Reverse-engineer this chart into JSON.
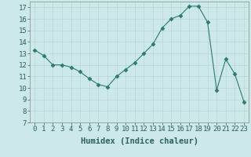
{
  "x": [
    0,
    1,
    2,
    3,
    4,
    5,
    6,
    7,
    8,
    9,
    10,
    11,
    12,
    13,
    14,
    15,
    16,
    17,
    18,
    19,
    20,
    21,
    22,
    23
  ],
  "y": [
    13.3,
    12.8,
    12.0,
    12.0,
    11.8,
    11.4,
    10.8,
    10.3,
    10.1,
    11.0,
    11.6,
    12.2,
    13.0,
    13.8,
    15.2,
    16.0,
    16.3,
    17.1,
    17.1,
    15.7,
    9.8,
    12.5,
    11.2,
    8.8
  ],
  "xlabel": "Humidex (Indice chaleur)",
  "xlim": [
    -0.5,
    23.5
  ],
  "ylim": [
    7,
    17.5
  ],
  "yticks": [
    7,
    8,
    9,
    10,
    11,
    12,
    13,
    14,
    15,
    16,
    17
  ],
  "xticks": [
    0,
    1,
    2,
    3,
    4,
    5,
    6,
    7,
    8,
    9,
    10,
    11,
    12,
    13,
    14,
    15,
    16,
    17,
    18,
    19,
    20,
    21,
    22,
    23
  ],
  "line_color": "#2d7a6e",
  "marker": "D",
  "marker_size": 2.5,
  "bg_color": "#cce8e8",
  "grid_color": "#b8d8d8",
  "font_color": "#2d6060",
  "xlabel_fontsize": 7.5,
  "tick_fontsize": 6.5
}
